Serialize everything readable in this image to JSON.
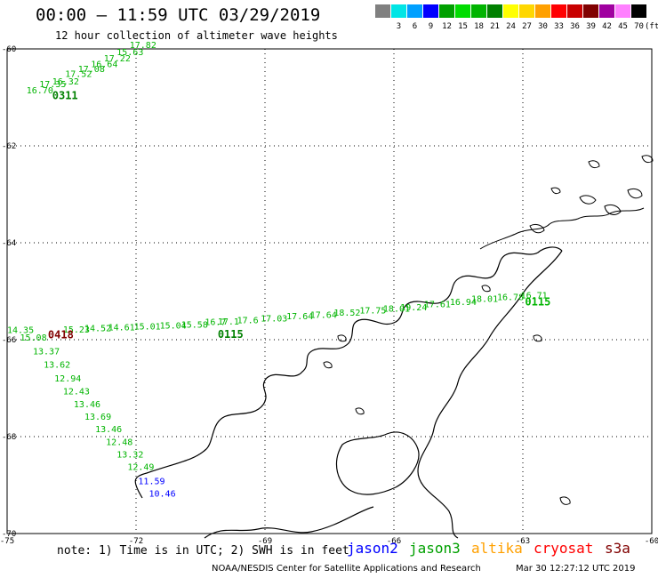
{
  "header": {
    "title": "00:00 – 11:59 UTC 03/29/2019",
    "subtitle": "12 hour collection of altimeter wave heights"
  },
  "scale": {
    "unit": "(ft)",
    "swatches": [
      {
        "color": "#808080",
        "label": ""
      },
      {
        "color": "#00e5e5",
        "label": "3"
      },
      {
        "color": "#00a0ff",
        "label": "6"
      },
      {
        "color": "#0000ff",
        "label": "9"
      },
      {
        "color": "#00a000",
        "label": "12"
      },
      {
        "color": "#00dc00",
        "label": "15"
      },
      {
        "color": "#00b400",
        "label": "18"
      },
      {
        "color": "#008000",
        "label": "21"
      },
      {
        "color": "#ffff00",
        "label": "24"
      },
      {
        "color": "#ffd700",
        "label": "27"
      },
      {
        "color": "#ffa000",
        "label": "30"
      },
      {
        "color": "#ff0000",
        "label": "33"
      },
      {
        "color": "#c80000",
        "label": "36"
      },
      {
        "color": "#800000",
        "label": "39"
      },
      {
        "color": "#a000a0",
        "label": "42"
      },
      {
        "color": "#ff80ff",
        "label": "45"
      },
      {
        "color": "#000000",
        "label": "70"
      }
    ]
  },
  "axes": {
    "lat_labels": [
      "-60",
      "-62",
      "-64",
      "-66",
      "-68",
      "-70"
    ],
    "lon_labels": [
      "-75",
      "-72",
      "-69",
      "-66",
      "-63",
      "-60"
    ]
  },
  "tracks": [
    {
      "time": "0311",
      "time_color": "#008000",
      "obs": [
        {
          "v": "16.70",
          "lon": -74.55,
          "lat": -60.92,
          "c": "#00b400"
        },
        {
          "v": "17.35",
          "lon": -74.25,
          "lat": -60.79,
          "c": "#00b400"
        },
        {
          "v": "16.32",
          "lon": -73.95,
          "lat": -60.73,
          "c": "#00b400"
        },
        {
          "v": "17.52",
          "lon": -73.65,
          "lat": -60.58,
          "c": "#00b400"
        },
        {
          "v": "17.08",
          "lon": -73.35,
          "lat": -60.48,
          "c": "#00b400"
        },
        {
          "v": "16.64",
          "lon": -73.05,
          "lat": -60.38,
          "c": "#00b400"
        },
        {
          "v": "17.22",
          "lon": -72.75,
          "lat": -60.26,
          "c": "#00b400"
        },
        {
          "v": "15.63",
          "lon": -72.45,
          "lat": -60.13,
          "c": "#00b400"
        },
        {
          "v": "17.82",
          "lon": -72.15,
          "lat": -59.98,
          "c": "#00b400"
        }
      ]
    },
    {
      "time": "0115",
      "time_color": "#008000",
      "obs": [
        {
          "v": "15.23",
          "lon": -73.7,
          "lat": -65.85,
          "c": "#00b400"
        },
        {
          "v": "14.52",
          "lon": -73.2,
          "lat": -65.83,
          "c": "#00b400"
        },
        {
          "v": "14.61",
          "lon": -72.65,
          "lat": -65.81,
          "c": "#00b400"
        },
        {
          "v": "15.01",
          "lon": -72.05,
          "lat": -65.79,
          "c": "#00b400"
        },
        {
          "v": "15.04",
          "lon": -71.45,
          "lat": -65.77,
          "c": "#00b400"
        },
        {
          "v": "15.58",
          "lon": -70.95,
          "lat": -65.75,
          "c": "#00b400"
        },
        {
          "v": "16.7",
          "lon": -70.4,
          "lat": -65.7,
          "c": "#00b400"
        },
        {
          "v": "17.1",
          "lon": -70.1,
          "lat": -65.69,
          "c": "#00b400"
        },
        {
          "v": "17.6",
          "lon": -69.65,
          "lat": -65.66,
          "c": "#00b400"
        },
        {
          "v": "17.03",
          "lon": -69.1,
          "lat": -65.62,
          "c": "#00b400"
        },
        {
          "v": "17.64",
          "lon": -68.5,
          "lat": -65.58,
          "c": "#00b400"
        },
        {
          "v": "17.64",
          "lon": -67.95,
          "lat": -65.55,
          "c": "#00b400"
        },
        {
          "v": "18.52",
          "lon": -67.4,
          "lat": -65.5,
          "c": "#00b400"
        },
        {
          "v": "17.75",
          "lon": -66.8,
          "lat": -65.46,
          "c": "#00b400"
        },
        {
          "v": "18.01",
          "lon": -66.25,
          "lat": -65.42,
          "c": "#00b400"
        },
        {
          "v": "19.24",
          "lon": -65.85,
          "lat": -65.39,
          "c": "#00b400"
        },
        {
          "v": "17.61",
          "lon": -65.3,
          "lat": -65.33,
          "c": "#00b400"
        },
        {
          "v": "16.94",
          "lon": -64.7,
          "lat": -65.28,
          "c": "#00b400"
        },
        {
          "v": "18.01",
          "lon": -64.2,
          "lat": -65.22,
          "c": "#00b400"
        },
        {
          "v": "16.78",
          "lon": -63.6,
          "lat": -65.18,
          "c": "#00b400"
        },
        {
          "v": "16.71",
          "lon": -63.05,
          "lat": -65.15,
          "c": "#00b400"
        }
      ]
    },
    {
      "time": "0418",
      "time_color": "#800000",
      "obs": [
        {
          "v": "14.35",
          "lon": -75.0,
          "lat": -65.86,
          "c": "#00b400"
        },
        {
          "v": "15.08",
          "lon": -74.7,
          "lat": -66.02,
          "c": "#00b400"
        },
        {
          "v": "13.37",
          "lon": -74.4,
          "lat": -66.3,
          "c": "#00b400"
        },
        {
          "v": "13.62",
          "lon": -74.15,
          "lat": -66.58,
          "c": "#00b400"
        },
        {
          "v": "12.94",
          "lon": -73.9,
          "lat": -66.86,
          "c": "#00b400"
        },
        {
          "v": "12.43",
          "lon": -73.7,
          "lat": -67.13,
          "c": "#00b400"
        },
        {
          "v": "13.46",
          "lon": -73.45,
          "lat": -67.39,
          "c": "#00b400"
        },
        {
          "v": "13.69",
          "lon": -73.2,
          "lat": -67.65,
          "c": "#00b400"
        },
        {
          "v": "13.46",
          "lon": -72.95,
          "lat": -67.91,
          "c": "#00b400"
        },
        {
          "v": "12.48",
          "lon": -72.7,
          "lat": -68.17,
          "c": "#00b400"
        },
        {
          "v": "13.32",
          "lon": -72.45,
          "lat": -68.43,
          "c": "#00b400"
        },
        {
          "v": "12.49",
          "lon": -72.2,
          "lat": -68.69,
          "c": "#00b400"
        },
        {
          "v": "11.59",
          "lon": -71.95,
          "lat": -68.98,
          "c": "#0000ff"
        },
        {
          "v": "10.46",
          "lon": -71.7,
          "lat": -69.24,
          "c": "#0000ff"
        }
      ]
    }
  ],
  "footer": {
    "note": "note: 1) Time is in UTC; 2) SWH is in feet",
    "satellites": [
      {
        "name": "jason2",
        "color": "#0000ff"
      },
      {
        "name": "jason3",
        "color": "#00a000"
      },
      {
        "name": "altika",
        "color": "#ffa000"
      },
      {
        "name": "cryosat",
        "color": "#ff0000"
      },
      {
        "name": "s3a",
        "color": "#800000"
      }
    ],
    "credit": "NOAA/NESDIS Center for Satellite Applications and Research",
    "timestamp": "Mar 30 12:27:12 UTC 2019"
  }
}
